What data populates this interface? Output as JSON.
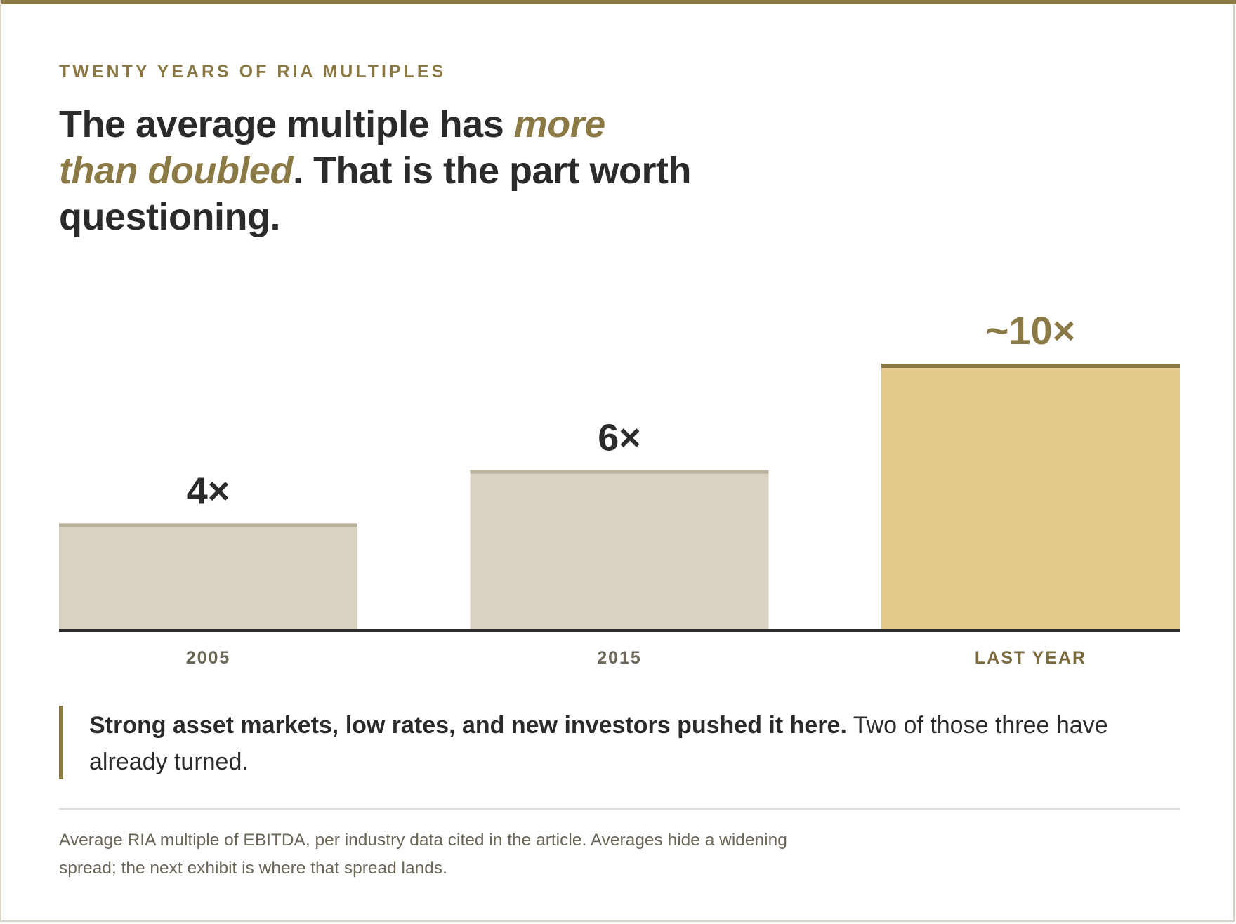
{
  "eyebrow": "TWENTY YEARS OF RIA MULTIPLES",
  "headline": {
    "lead": "The average multiple has ",
    "accent": "more than doubled",
    "tail": ". That is the part worth questioning."
  },
  "chart_data": {
    "type": "bar",
    "title": "",
    "xlabel": "",
    "ylabel": "",
    "categories": [
      "2005",
      "2015",
      "LAST YEAR"
    ],
    "values": [
      4,
      6,
      10
    ],
    "data_labels": [
      "4×",
      "6×",
      "~10×"
    ],
    "ylim": [
      0,
      10
    ],
    "grid": false,
    "legend": "none",
    "colors": {
      "bar_default": "#d9d1c1",
      "bar_default_cap": "#b9b09e",
      "bar_highlight": "#e4cb8c",
      "bar_highlight_cap": "#8b7a45",
      "label_default": "#2b2b2b",
      "label_highlight": "#8b7a45",
      "tick_default": "#6b6657",
      "tick_highlight": "#7a6a3c",
      "baseline": "#2b2b2b"
    },
    "highlight_index": 2
  },
  "callout": {
    "bold": "Strong asset markets, low rates, and new investors pushed it here.",
    "rest": " Two of those three have already turned."
  },
  "footnote": "Average RIA multiple of EBITDA, per industry data cited in the article. Averages hide a widening spread; the next exhibit is where that spread lands."
}
